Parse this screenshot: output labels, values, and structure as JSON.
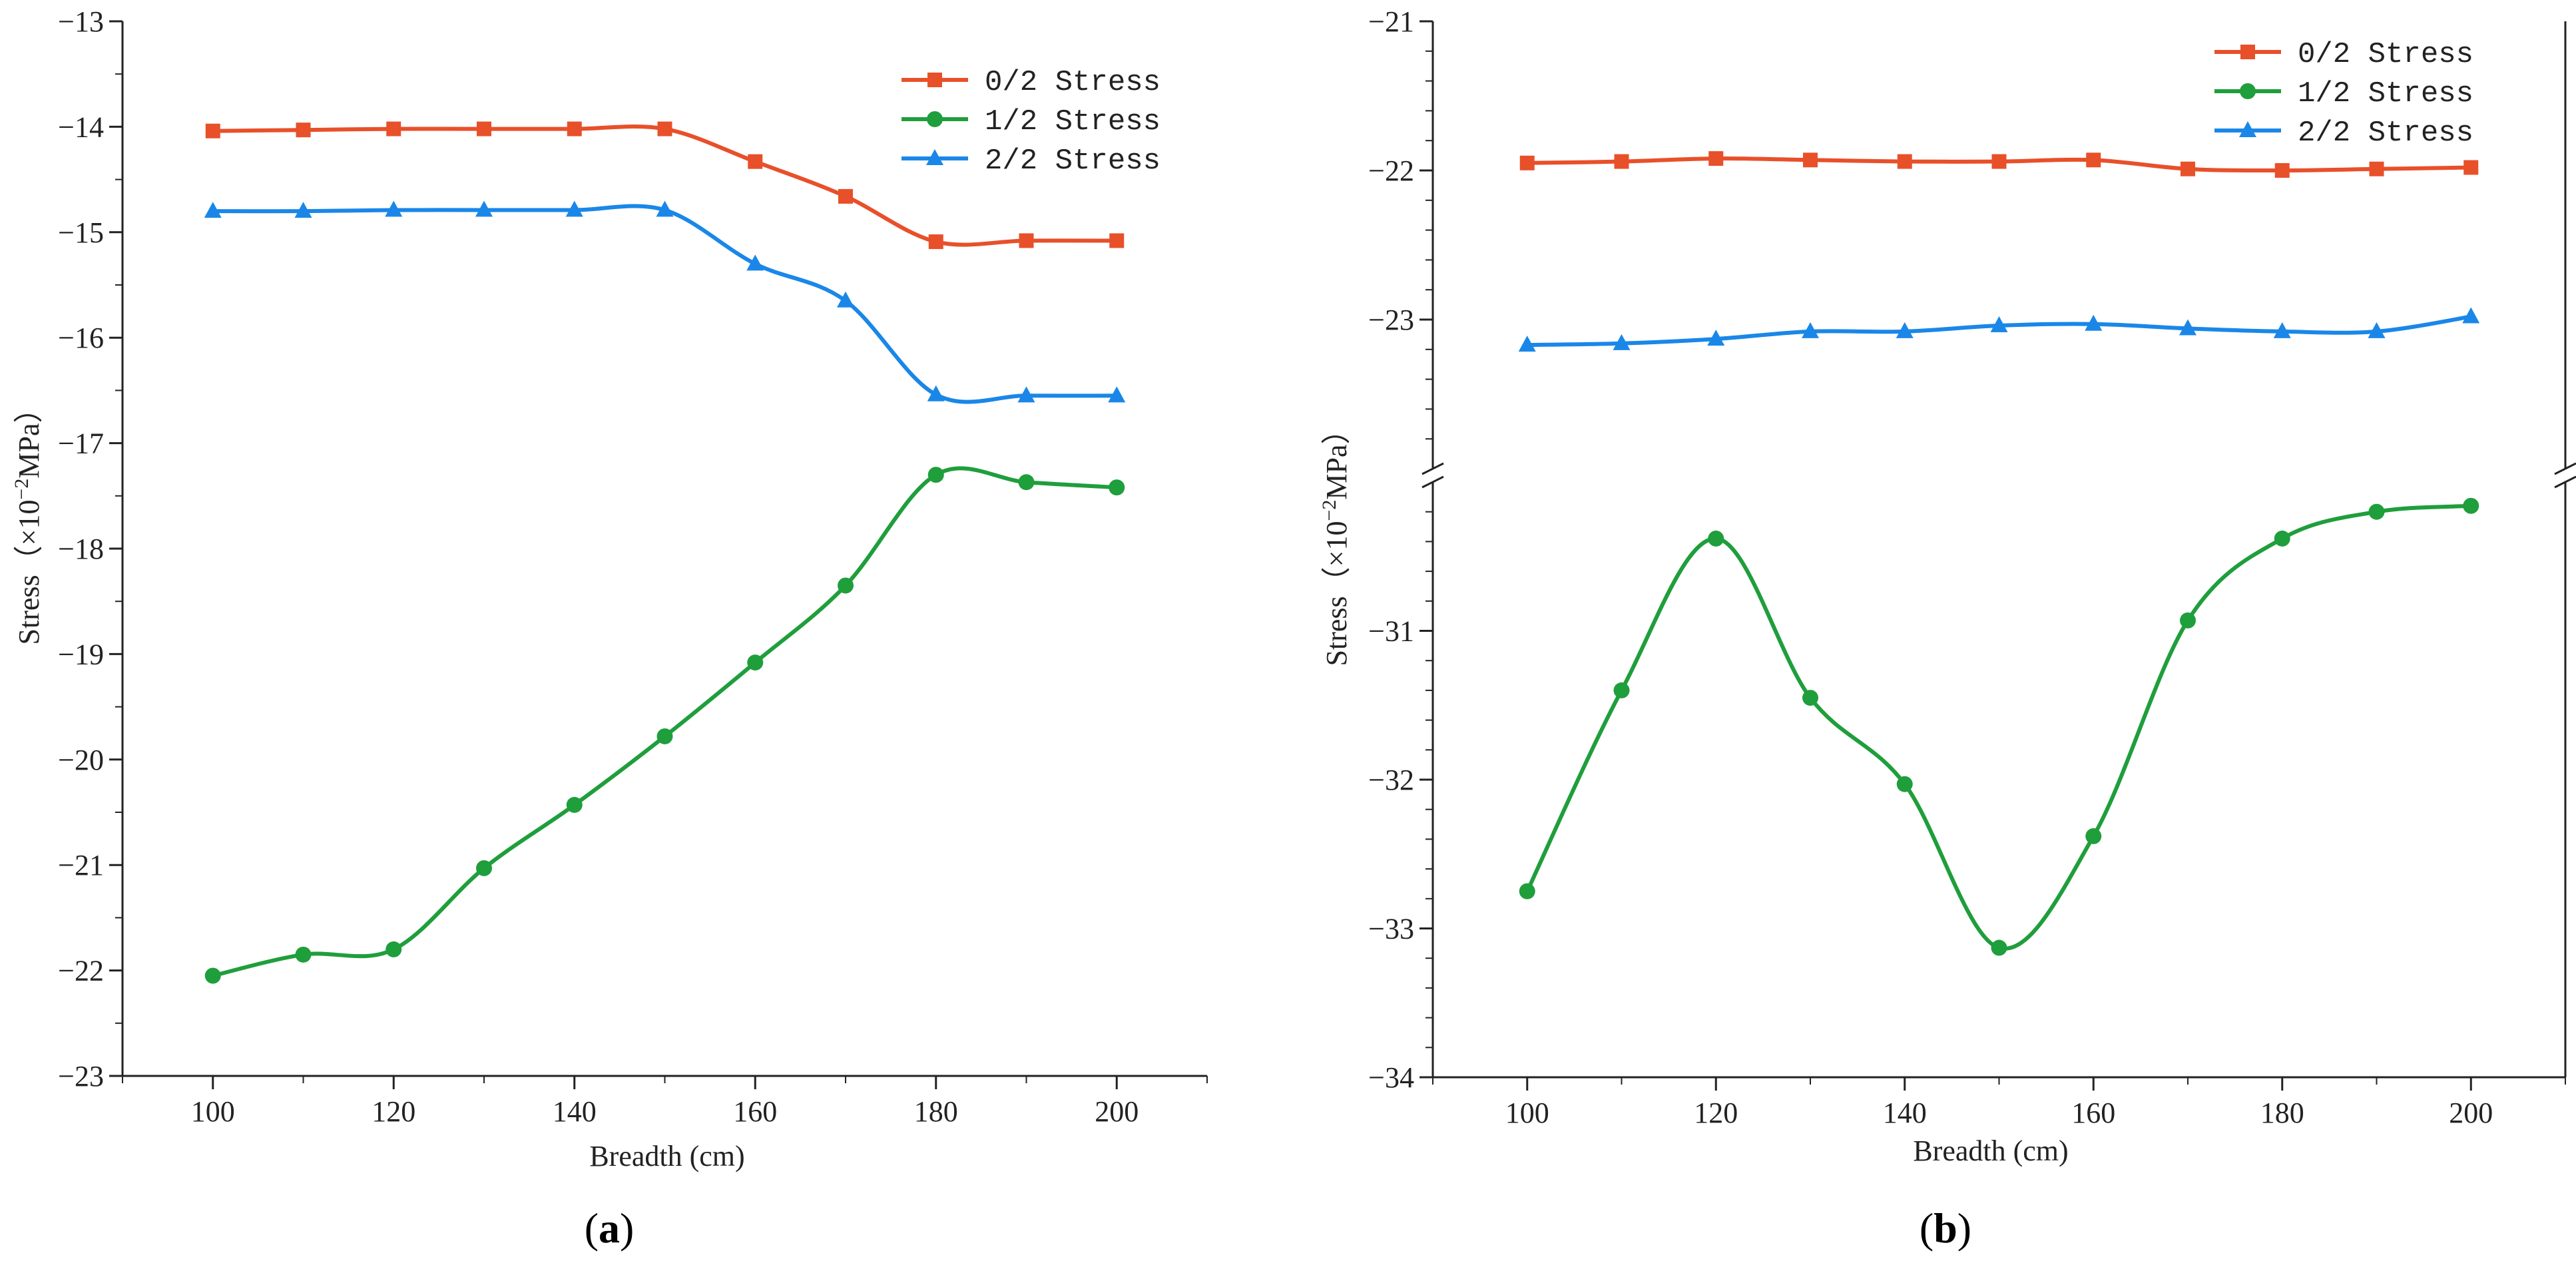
{
  "chart_data": [
    {
      "type": "line",
      "panel_label": {
        "open": "(",
        "letter": "a",
        "close": ")"
      },
      "xlabel": "Breadth (cm)",
      "ylabel": {
        "prefix": "Stress（×10",
        "exp": "−2",
        "suffix": "MPa）"
      },
      "x": [
        100,
        110,
        120,
        130,
        140,
        150,
        160,
        170,
        180,
        190,
        200
      ],
      "xlim": [
        90,
        210
      ],
      "xticks": [
        100,
        120,
        140,
        160,
        180,
        200
      ],
      "ylim": [
        -23,
        -13
      ],
      "yticks": [
        -23,
        -22,
        -21,
        -20,
        -19,
        -18,
        -17,
        -16,
        -15,
        -14,
        -13
      ],
      "ytick_labels": [
        "−23",
        "−22",
        "−21",
        "−20",
        "−19",
        "−18",
        "−17",
        "−16",
        "−15",
        "−14",
        "−13"
      ],
      "legend_position": "top-right",
      "grid": false,
      "series": [
        {
          "name": "0/2 Stress",
          "color": "#e8502a",
          "marker": "square",
          "values": [
            -14.04,
            -14.03,
            -14.02,
            -14.02,
            -14.02,
            -14.02,
            -14.33,
            -14.66,
            -15.09,
            -15.08,
            -15.08
          ]
        },
        {
          "name": "1/2 Stress",
          "color": "#1f9e3c",
          "marker": "circle",
          "values": [
            -22.05,
            -21.85,
            -21.8,
            -21.03,
            -20.43,
            -19.78,
            -19.08,
            -18.35,
            -17.3,
            -17.37,
            -17.42
          ]
        },
        {
          "name": "2/2 Stress",
          "color": "#1a87e8",
          "marker": "triangle",
          "values": [
            -14.8,
            -14.8,
            -14.79,
            -14.79,
            -14.79,
            -14.79,
            -15.3,
            -15.65,
            -16.54,
            -16.55,
            -16.55
          ]
        }
      ]
    },
    {
      "type": "line",
      "panel_label": {
        "open": "(",
        "letter": "b",
        "close": ")"
      },
      "xlabel": "Breadth (cm)",
      "ylabel": {
        "prefix": "Stress（×10",
        "exp": "−2",
        "suffix": "MPa）"
      },
      "x": [
        100,
        110,
        120,
        130,
        140,
        150,
        160,
        170,
        180,
        190,
        200
      ],
      "xlim": [
        90,
        210
      ],
      "xticks": [
        100,
        120,
        140,
        160,
        180,
        200
      ],
      "broken_axis": true,
      "ylim_upper": [
        -24,
        -21
      ],
      "ylim_lower": [
        -34,
        -30
      ],
      "yticks_upper": [
        -23,
        -22,
        -21
      ],
      "ytick_labels_upper": [
        "−23",
        "−22",
        "−21"
      ],
      "yticks_lower": [
        -34,
        -33,
        -32,
        -31
      ],
      "ytick_labels_lower": [
        "−34",
        "−33",
        "−32",
        "−31"
      ],
      "legend_position": "top-right",
      "grid": false,
      "series": [
        {
          "name": "0/2 Stress",
          "color": "#e8502a",
          "marker": "square",
          "values": [
            -21.95,
            -21.94,
            -21.92,
            -21.93,
            -21.94,
            -21.94,
            -21.93,
            -21.99,
            -22.0,
            -21.99,
            -21.98
          ]
        },
        {
          "name": "1/2 Stress",
          "color": "#1f9e3c",
          "marker": "circle",
          "values": [
            -32.75,
            -31.4,
            -30.38,
            -31.45,
            -32.03,
            -33.13,
            -32.38,
            -30.93,
            -30.38,
            -30.2,
            -30.16
          ]
        },
        {
          "name": "2/2 Stress",
          "color": "#1a87e8",
          "marker": "triangle",
          "values": [
            -23.17,
            -23.16,
            -23.13,
            -23.08,
            -23.08,
            -23.04,
            -23.03,
            -23.06,
            -23.08,
            -23.08,
            -22.98
          ]
        }
      ]
    }
  ]
}
